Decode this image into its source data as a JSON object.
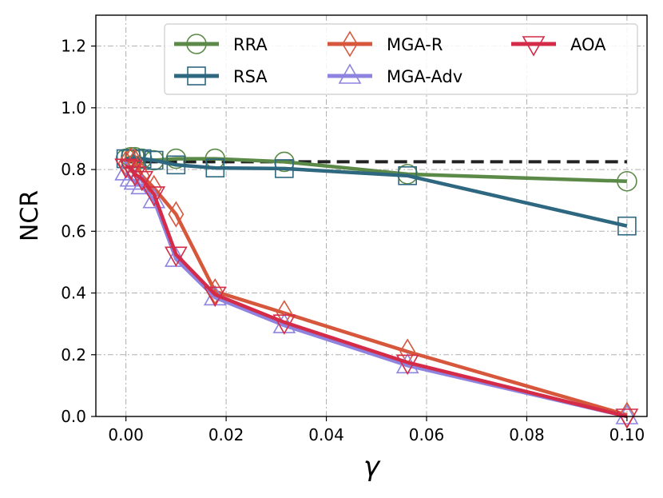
{
  "chart_data": {
    "type": "line",
    "xlabel": "γ",
    "ylabel": "NCR",
    "xlim": [
      -0.006,
      0.104
    ],
    "ylim": [
      0.0,
      1.3
    ],
    "xticks": [
      "0.00",
      "0.02",
      "0.04",
      "0.06",
      "0.08",
      "0.10"
    ],
    "xtick_values": [
      0,
      0.02,
      0.04,
      0.06,
      0.08,
      0.1
    ],
    "yticks": [
      "0.0",
      "0.2",
      "0.4",
      "0.6",
      "0.8",
      "1.0",
      "1.2"
    ],
    "ytick_values": [
      0,
      0.2,
      0.4,
      0.6,
      0.8,
      1.0,
      1.2
    ],
    "grid": true,
    "legend_position": "top-right",
    "reference_line": {
      "y": 0.825,
      "x_range": [
        0.0,
        0.1
      ],
      "style": "dashed",
      "color": "#222222"
    },
    "series": [
      {
        "name": "RRA",
        "color": "#5b8a48",
        "marker": "circle",
        "x": [
          0.0,
          0.001,
          0.0018,
          0.0032,
          0.0056,
          0.01,
          0.0178,
          0.0316,
          0.0562,
          0.1
        ],
        "y": [
          0.835,
          0.84,
          0.84,
          0.835,
          0.83,
          0.835,
          0.835,
          0.825,
          0.785,
          0.762
        ]
      },
      {
        "name": "RSA",
        "color": "#2e6780",
        "marker": "square",
        "x": [
          0.0,
          0.001,
          0.0018,
          0.0032,
          0.0056,
          0.01,
          0.0178,
          0.0316,
          0.0562,
          0.1
        ],
        "y": [
          0.835,
          0.835,
          0.835,
          0.835,
          0.83,
          0.815,
          0.805,
          0.803,
          0.78,
          0.617
        ]
      },
      {
        "name": "MGA-R",
        "color": "#d6573c",
        "marker": "diamond",
        "x": [
          0.0,
          0.001,
          0.0018,
          0.0032,
          0.0056,
          0.01,
          0.0178,
          0.0316,
          0.0562,
          0.1
        ],
        "y": [
          0.82,
          0.83,
          0.825,
          0.78,
          0.74,
          0.655,
          0.405,
          0.335,
          0.21,
          0.005
        ]
      },
      {
        "name": "MGA-Adv",
        "color": "#8e84e0",
        "marker": "triangle-up",
        "x": [
          0.0,
          0.001,
          0.0018,
          0.0032,
          0.0056,
          0.01,
          0.0178,
          0.0316,
          0.0562,
          0.1
        ],
        "y": [
          0.79,
          0.77,
          0.76,
          0.745,
          0.7,
          0.51,
          0.385,
          0.295,
          0.165,
          0.0
        ]
      },
      {
        "name": "AOA",
        "color": "#d42b48",
        "marker": "triangle-down",
        "x": [
          0.0,
          0.001,
          0.0018,
          0.0032,
          0.0056,
          0.01,
          0.0178,
          0.0316,
          0.0562,
          0.1
        ],
        "y": [
          0.81,
          0.805,
          0.785,
          0.77,
          0.72,
          0.525,
          0.395,
          0.305,
          0.175,
          0.0
        ]
      }
    ]
  }
}
